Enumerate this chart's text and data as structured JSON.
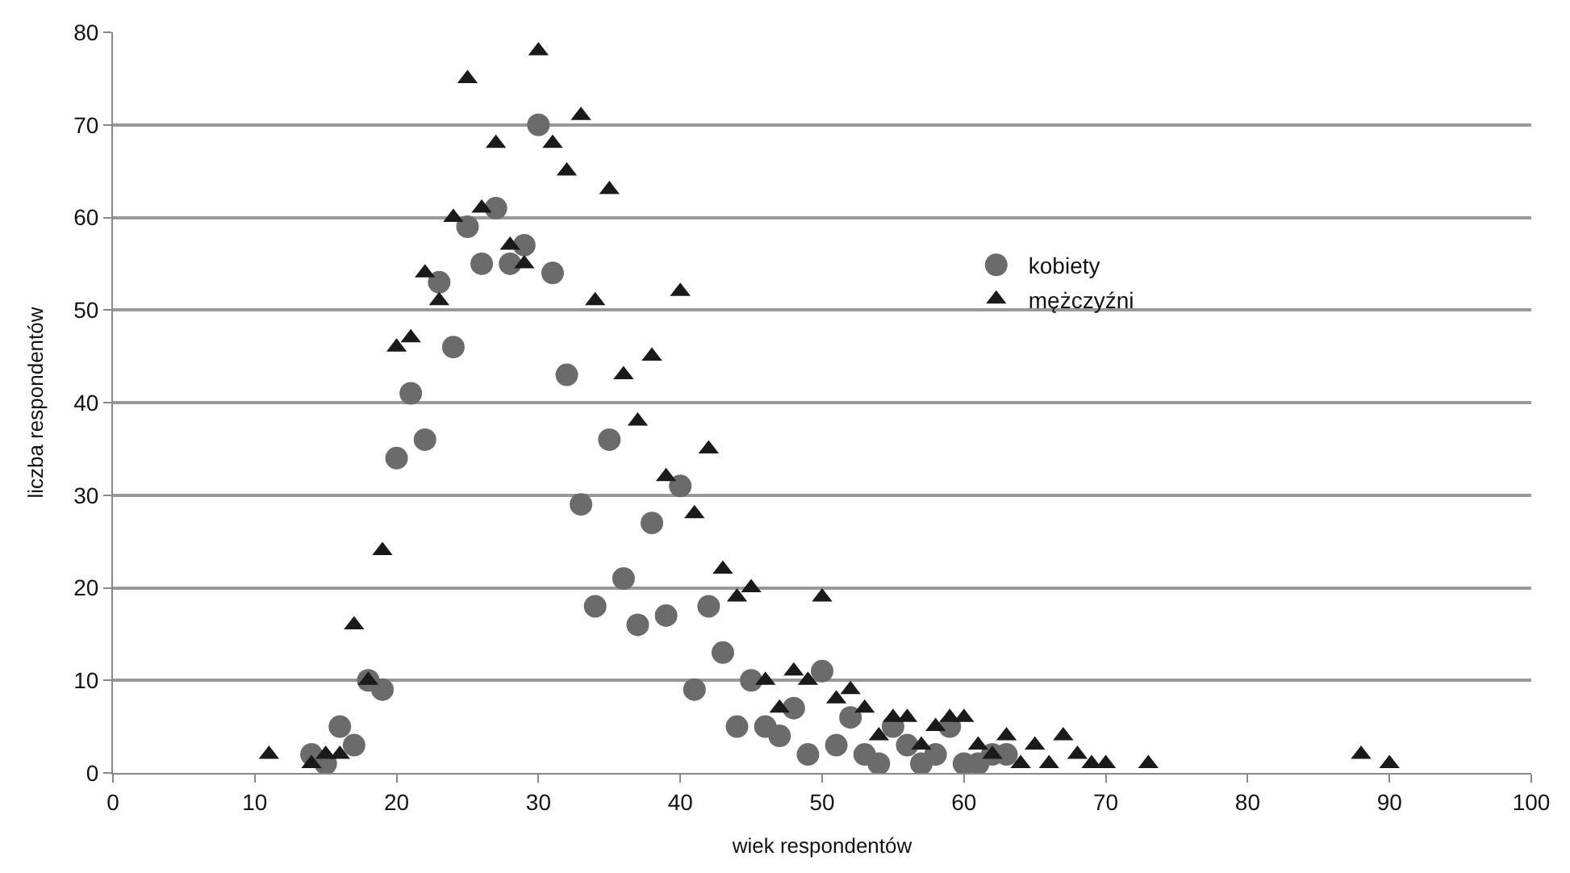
{
  "chart_data": {
    "type": "scatter",
    "xlabel": "wiek respondentów",
    "ylabel": "liczba respondentów",
    "xlim": [
      0,
      100
    ],
    "xticks": [
      0,
      10,
      20,
      30,
      40,
      50,
      60,
      70,
      80,
      90,
      100
    ],
    "ylim": [
      0,
      80
    ],
    "yticks": [
      0,
      10,
      20,
      30,
      40,
      50,
      60,
      70,
      80
    ],
    "grid": "y",
    "legend": "right",
    "series": [
      {
        "name": "kobiety",
        "color": "#6b6b6b",
        "marker": "circle",
        "x": [
          14,
          15,
          16,
          17,
          18,
          19,
          20,
          21,
          22,
          23,
          24,
          25,
          26,
          27,
          28,
          29,
          30,
          31,
          32,
          33,
          34,
          35,
          36,
          37,
          38,
          39,
          40,
          41,
          42,
          43,
          44,
          45,
          46,
          47,
          48,
          49,
          50,
          51,
          52,
          53,
          54,
          55,
          56,
          57,
          58,
          59,
          60,
          61,
          62,
          63
        ],
        "values": [
          2,
          1,
          5,
          3,
          10,
          9,
          34,
          41,
          36,
          53,
          46,
          59,
          55,
          61,
          55,
          57,
          70,
          54,
          43,
          29,
          18,
          36,
          21,
          16,
          27,
          17,
          31,
          9,
          18,
          13,
          5,
          10,
          5,
          4,
          7,
          2,
          11,
          3,
          6,
          2,
          1,
          5,
          3,
          1,
          2,
          5,
          1,
          1,
          2,
          2
        ]
      },
      {
        "name": "mężczyźni",
        "color": "#1a1a1a",
        "marker": "triangle",
        "x": [
          11,
          14,
          15,
          16,
          17,
          18,
          19,
          20,
          21,
          22,
          23,
          24,
          25,
          26,
          27,
          28,
          29,
          30,
          31,
          32,
          33,
          34,
          35,
          36,
          37,
          38,
          39,
          40,
          41,
          42,
          43,
          44,
          45,
          46,
          47,
          48,
          49,
          50,
          51,
          52,
          53,
          54,
          55,
          56,
          57,
          58,
          59,
          60,
          61,
          62,
          63,
          64,
          65,
          66,
          67,
          68,
          69,
          70,
          73,
          88,
          90
        ],
        "values": [
          2,
          1,
          2,
          2,
          16,
          10,
          24,
          46,
          47,
          54,
          51,
          60,
          75,
          61,
          68,
          57,
          55,
          78,
          68,
          65,
          71,
          51,
          63,
          43,
          38,
          45,
          32,
          52,
          28,
          35,
          22,
          19,
          20,
          10,
          7,
          11,
          10,
          19,
          8,
          9,
          7,
          4,
          6,
          6,
          3,
          5,
          6,
          6,
          3,
          2,
          4,
          1,
          3,
          1,
          4,
          2,
          1,
          1,
          1,
          2,
          1
        ]
      }
    ]
  }
}
